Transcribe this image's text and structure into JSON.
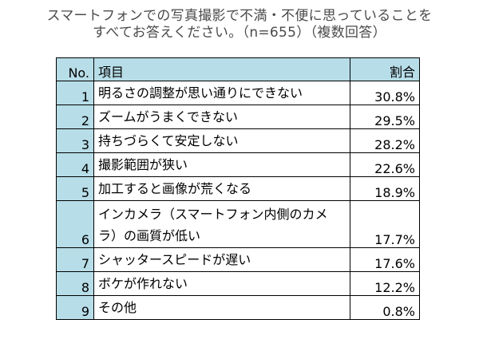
{
  "title": {
    "line1": "スマートフォンでの写真撮影で不満・不便に思っていることを",
    "line2": "すべてお答えください。（n=655）（複数回答）"
  },
  "colors": {
    "header_bg": "#b7dde8",
    "title_text": "#4a4a4a",
    "border": "#000000"
  },
  "chart_data": {
    "type": "table",
    "columns": [
      "No.",
      "項目",
      "割合"
    ],
    "rows": [
      {
        "no": "1",
        "item": "明るさの調整が思い通りにできない",
        "rate": "30.8%"
      },
      {
        "no": "2",
        "item": "ズームがうまくできない",
        "rate": "29.5%"
      },
      {
        "no": "3",
        "item": "持ちづらくて安定しない",
        "rate": "28.2%"
      },
      {
        "no": "4",
        "item": "撮影範囲が狭い",
        "rate": "22.6%"
      },
      {
        "no": "5",
        "item": "加工すると画像が荒くなる",
        "rate": "18.9%"
      },
      {
        "no": "6",
        "item": "インカメラ（スマートフォン内側のカメラ）の画質が低い",
        "rate": "17.7%"
      },
      {
        "no": "7",
        "item": "シャッタースピードが遅い",
        "rate": "17.6%"
      },
      {
        "no": "8",
        "item": "ボケが作れない",
        "rate": "12.2%"
      },
      {
        "no": "9",
        "item": "その他",
        "rate": "0.8%"
      }
    ]
  }
}
